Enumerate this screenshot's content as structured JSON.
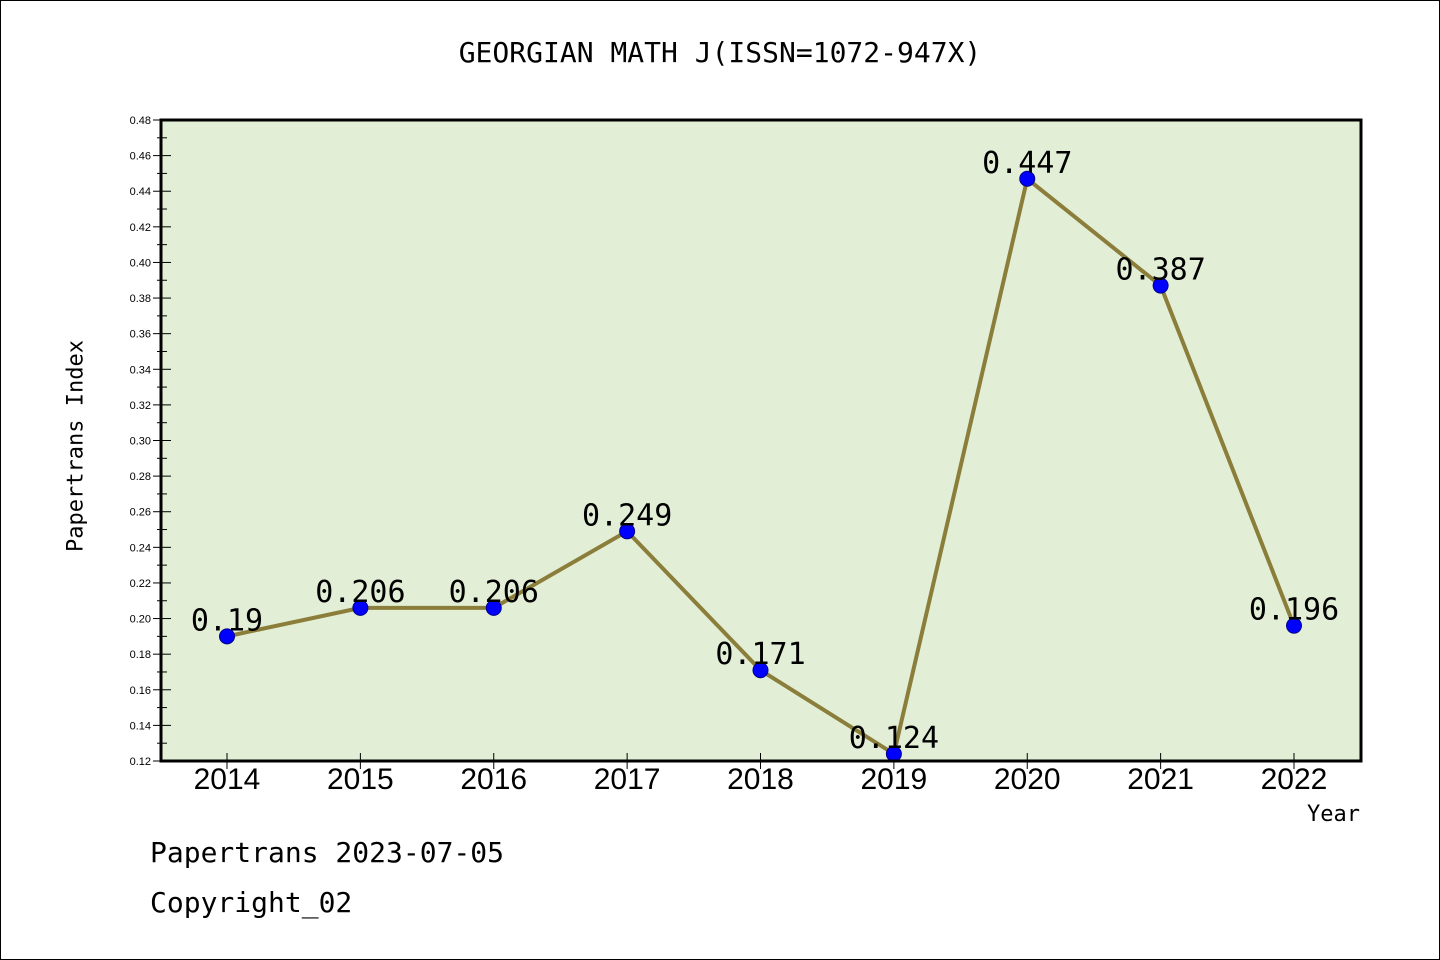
{
  "chart_data": {
    "type": "line",
    "title": "GEORGIAN MATH J(ISSN=1072-947X)",
    "xlabel": "Year",
    "ylabel": "Papertrans Index",
    "categories": [
      "2014",
      "2015",
      "2016",
      "2017",
      "2018",
      "2019",
      "2020",
      "2021",
      "2022"
    ],
    "series": [
      {
        "values": [
          0.19,
          0.206,
          0.206,
          0.249,
          0.171,
          0.124,
          0.447,
          0.387,
          0.196
        ],
        "data_labels": [
          "0.19",
          "0.206",
          "0.206",
          "0.249",
          "0.171",
          "0.124",
          "0.447",
          "0.387",
          "0.196"
        ]
      }
    ],
    "ylim": [
      0.12,
      0.48
    ],
    "yticks": [
      "0.12",
      "0.14",
      "0.16",
      "0.18",
      "0.20",
      "0.22",
      "0.24",
      "0.26",
      "0.28",
      "0.30",
      "0.32",
      "0.34",
      "0.36",
      "0.38",
      "0.40",
      "0.42",
      "0.44",
      "0.46",
      "0.48"
    ],
    "grid": false,
    "colors": {
      "plot_background": "#e2efd6",
      "line": "#8b7d3a",
      "marker": "#0000ff"
    }
  },
  "footer": {
    "line1": "Papertrans 2023-07-05",
    "line2": "Copyright_02"
  }
}
